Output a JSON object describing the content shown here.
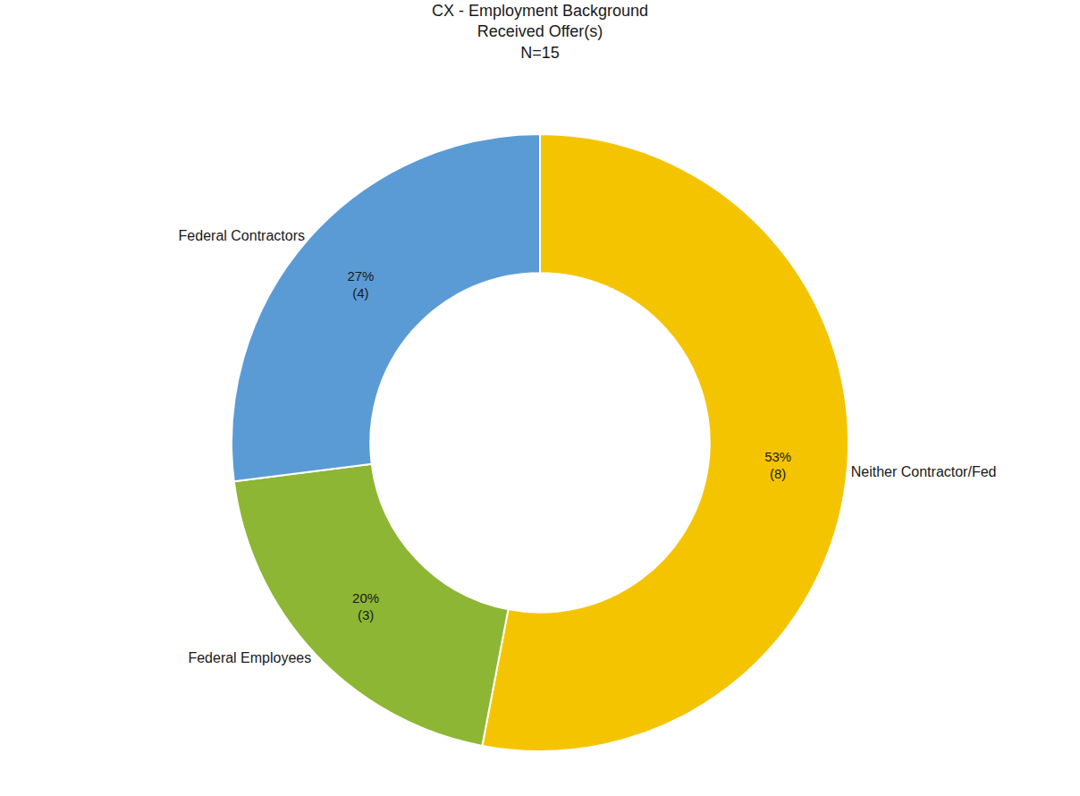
{
  "chart_data": {
    "type": "pie",
    "title": "CX - Employment Background\nReceived Offer(s)\nN=15",
    "categories": [
      "Neither Contractor/Fed",
      "Federal Employees",
      "Federal Contractors"
    ],
    "values": [
      53,
      20,
      27
    ],
    "value_labels": [
      "53%\n(8)",
      "20%\n(3)",
      "27%\n(4)"
    ],
    "colors": [
      "#F5C400",
      "#8DB635",
      "#5B9BD5"
    ],
    "data_labels": true
  }
}
